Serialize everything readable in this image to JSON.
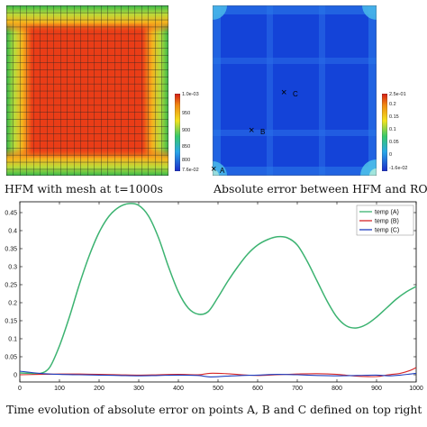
{
  "top_left": {
    "colorbar_ticks": [
      "1.0e-03",
      "950",
      "900",
      "850",
      "800",
      "7.6e-02"
    ],
    "caption": "HFM with mesh at t=1000s"
  },
  "top_right": {
    "colorbar_ticks": [
      "2.5e-01",
      "0.2",
      "0.15",
      "0.1",
      "0.05",
      "0",
      "-1.6e-02"
    ],
    "points": [
      {
        "mark": "×",
        "label": "C"
      },
      {
        "mark": "×",
        "label": "B"
      },
      {
        "mark": "×",
        "label": "A"
      }
    ],
    "caption": "Absolute error between HFM and ROM"
  },
  "chart_data": {
    "type": "line",
    "title": "",
    "xlabel": "",
    "ylabel": "",
    "xlim": [
      0,
      1000
    ],
    "ylim": [
      -0.02,
      0.48
    ],
    "xticks": [
      "0",
      "100",
      "200",
      "300",
      "400",
      "500",
      "600",
      "700",
      "800",
      "900",
      "1000"
    ],
    "yticks": [
      "0",
      "0.05",
      "0.1",
      "0.15",
      "0.2",
      "0.25",
      "0.3",
      "0.35",
      "0.4",
      "0.45"
    ],
    "legend_position": "top-right",
    "series": [
      {
        "name": "temp (A)",
        "color": "#3cb371",
        "x": [
          0,
          25,
          50,
          75,
          100,
          125,
          150,
          175,
          200,
          225,
          250,
          275,
          300,
          325,
          350,
          375,
          400,
          425,
          450,
          475,
          500,
          525,
          550,
          575,
          600,
          625,
          650,
          675,
          700,
          725,
          750,
          775,
          800,
          825,
          850,
          875,
          900,
          925,
          950,
          975,
          1000
        ],
        "y": [
          0.005,
          0.004,
          0.003,
          0.02,
          0.08,
          0.16,
          0.25,
          0.33,
          0.395,
          0.44,
          0.465,
          0.475,
          0.47,
          0.44,
          0.38,
          0.3,
          0.23,
          0.185,
          0.168,
          0.175,
          0.215,
          0.26,
          0.3,
          0.335,
          0.36,
          0.375,
          0.383,
          0.38,
          0.36,
          0.315,
          0.26,
          0.205,
          0.16,
          0.135,
          0.13,
          0.14,
          0.16,
          0.185,
          0.21,
          0.23,
          0.245
        ]
      },
      {
        "name": "temp (B)",
        "color": "#d62728",
        "x": [
          0,
          50,
          100,
          150,
          200,
          250,
          300,
          350,
          400,
          450,
          480,
          520,
          560,
          600,
          650,
          700,
          750,
          800,
          850,
          900,
          930,
          960,
          985,
          1000
        ],
        "y": [
          0.0,
          0.001,
          0.002,
          0.002,
          0.001,
          0.0,
          -0.001,
          0.0,
          0.001,
          0.0,
          0.004,
          0.003,
          0.0,
          -0.002,
          0.0,
          0.002,
          0.003,
          0.001,
          -0.004,
          -0.005,
          0.0,
          0.004,
          0.012,
          0.02
        ]
      },
      {
        "name": "temp (C)",
        "color": "#1f3fbf",
        "x": [
          0,
          50,
          100,
          150,
          200,
          250,
          300,
          350,
          400,
          450,
          480,
          520,
          560,
          600,
          650,
          700,
          750,
          800,
          850,
          900,
          930,
          960,
          985,
          1000
        ],
        "y": [
          0.01,
          0.004,
          0.001,
          0.0,
          -0.001,
          -0.002,
          -0.003,
          -0.002,
          -0.001,
          -0.002,
          -0.006,
          -0.004,
          -0.002,
          -0.001,
          0.001,
          0.0,
          -0.002,
          -0.003,
          -0.002,
          -0.001,
          -0.003,
          -0.001,
          0.002,
          0.004
        ]
      }
    ]
  },
  "bottom_caption": "Time evolution of absolute error on points A, B and C defined on top right"
}
